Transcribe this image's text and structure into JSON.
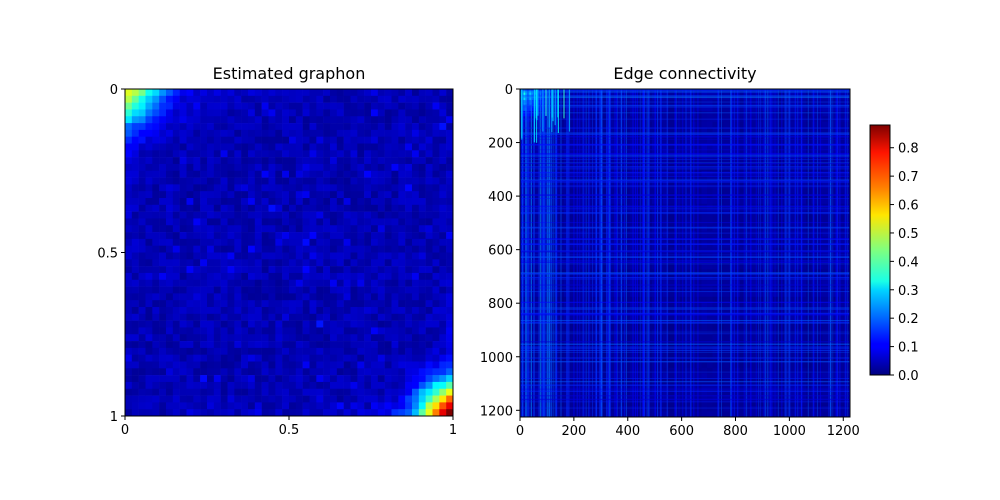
{
  "chart_data": [
    {
      "type": "heatmap",
      "title": "Estimated graphon",
      "colormap": "jet",
      "value_range": [
        0.0,
        0.9
      ],
      "grid": false,
      "x_range": [
        0,
        1
      ],
      "y_range": [
        0,
        1
      ],
      "y_inverted": true,
      "xticks": [
        {
          "value": 0,
          "label": "0"
        },
        {
          "value": 0.5,
          "label": "0.5"
        },
        {
          "value": 1,
          "label": "1"
        }
      ],
      "yticks": [
        {
          "value": 0,
          "label": "0"
        },
        {
          "value": 0.5,
          "label": "0.5"
        },
        {
          "value": 1,
          "label": "1"
        }
      ],
      "description": "Mostly near 0; high values (~0.4-0.5) at top-left corner, highest values (~0.6-0.85) at bottom-right corner"
    },
    {
      "type": "heatmap",
      "title": "Edge connectivity",
      "colormap": "jet",
      "value_range": [
        0.0,
        0.9
      ],
      "grid": false,
      "x_range": [
        0,
        1225
      ],
      "y_range": [
        0,
        1225
      ],
      "y_inverted": true,
      "xticks": [
        {
          "value": 0,
          "label": "0"
        },
        {
          "value": 200,
          "label": "200"
        },
        {
          "value": 400,
          "label": "400"
        },
        {
          "value": 600,
          "label": "600"
        },
        {
          "value": 800,
          "label": "800"
        },
        {
          "value": 1000,
          "label": "1000"
        },
        {
          "value": 1200,
          "label": "1200"
        }
      ],
      "yticks": [
        {
          "value": 0,
          "label": "0"
        },
        {
          "value": 200,
          "label": "200"
        },
        {
          "value": 400,
          "label": "400"
        },
        {
          "value": 600,
          "label": "600"
        },
        {
          "value": 800,
          "label": "800"
        },
        {
          "value": 1000,
          "label": "1000"
        },
        {
          "value": 1200,
          "label": "1200"
        }
      ],
      "description": "Dense near-zero background with vertical/horizontal streaks around 0.1-0.2; cyan/green (~0.3-0.4) values near top-left corner"
    },
    {
      "type": "colorbar",
      "value_range": [
        0.0,
        0.88
      ],
      "ticks": [
        {
          "value": 0.0,
          "label": "0.0"
        },
        {
          "value": 0.1,
          "label": "0.1"
        },
        {
          "value": 0.2,
          "label": "0.2"
        },
        {
          "value": 0.3,
          "label": "0.3"
        },
        {
          "value": 0.4,
          "label": "0.4"
        },
        {
          "value": 0.5,
          "label": "0.5"
        },
        {
          "value": 0.6,
          "label": "0.6"
        },
        {
          "value": 0.7,
          "label": "0.7"
        },
        {
          "value": 0.8,
          "label": "0.8"
        }
      ]
    }
  ]
}
